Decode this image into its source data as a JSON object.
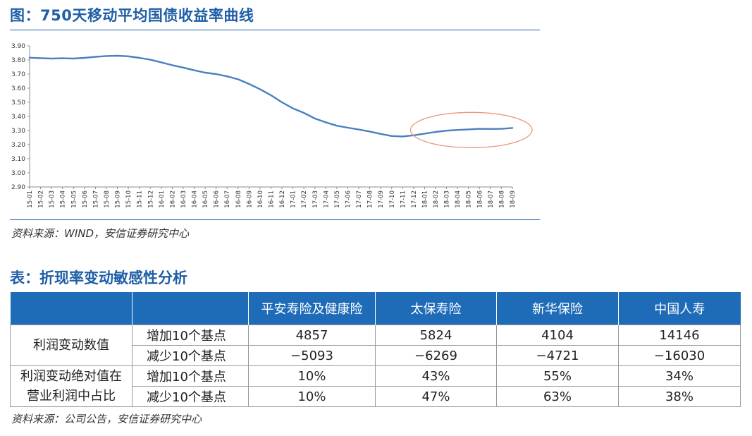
{
  "figure": {
    "title": "图：750天移动平均国债收益率曲线",
    "source": "资料来源：WIND，安信证券研究中心"
  },
  "chart_data": {
    "type": "line",
    "x": [
      "15-01",
      "15-02",
      "15-03",
      "15-04",
      "15-05",
      "15-06",
      "15-07",
      "15-08",
      "15-09",
      "15-10",
      "15-11",
      "15-12",
      "16-01",
      "16-02",
      "16-03",
      "16-04",
      "16-05",
      "16-06",
      "16-07",
      "16-08",
      "16-09",
      "16-10",
      "16-11",
      "16-12",
      "17-01",
      "17-02",
      "17-03",
      "17-04",
      "17-05",
      "17-06",
      "17-07",
      "17-08",
      "17-09",
      "17-10",
      "17-11",
      "17-12",
      "18-01",
      "18-02",
      "18-03",
      "18-04",
      "18-05",
      "18-06",
      "18-07",
      "18-08",
      "18-09"
    ],
    "values": [
      3.816,
      3.813,
      3.81,
      3.812,
      3.81,
      3.815,
      3.822,
      3.828,
      3.83,
      3.826,
      3.815,
      3.802,
      3.783,
      3.763,
      3.746,
      3.727,
      3.71,
      3.7,
      3.684,
      3.663,
      3.63,
      3.593,
      3.55,
      3.5,
      3.457,
      3.425,
      3.385,
      3.358,
      3.334,
      3.32,
      3.307,
      3.293,
      3.276,
      3.261,
      3.258,
      3.266,
      3.278,
      3.29,
      3.299,
      3.304,
      3.308,
      3.312,
      3.311,
      3.312,
      3.318
    ],
    "ylim": [
      2.9,
      3.9
    ],
    "yticks": [
      "2.90",
      "3.00",
      "3.10",
      "3.20",
      "3.30",
      "3.40",
      "3.50",
      "3.60",
      "3.70",
      "3.80",
      "3.90"
    ],
    "line_color": "#4a7fc1",
    "highlight_color": "#e8987a",
    "grid": false,
    "legend": "none"
  },
  "table": {
    "title": "表：折现率变动敏感性分析",
    "headers": [
      "",
      "",
      "平安寿险及健康险",
      "太保寿险",
      "新华保险",
      "中国人寿"
    ],
    "groups": [
      {
        "label": "利润变动数值",
        "rows": [
          {
            "label": "增加10个基点",
            "values": [
              "4857",
              "5824",
              "4104",
              "14146"
            ]
          },
          {
            "label": "减少10个基点",
            "values": [
              "−5093",
              "−6269",
              "−4721",
              "−16030"
            ]
          }
        ]
      },
      {
        "label": "利润变动绝对值在营业利润中占比",
        "label_line1": "利润变动绝对值在",
        "label_line2": "营业利润中占比",
        "rows": [
          {
            "label": "增加10个基点",
            "values": [
              "10%",
              "43%",
              "55%",
              "34%"
            ]
          },
          {
            "label": "减少10个基点",
            "values": [
              "10%",
              "47%",
              "63%",
              "38%"
            ]
          }
        ]
      }
    ],
    "source": "资料来源：公司公告，安信证券研究中心",
    "header_color": "#1e6bb8"
  }
}
